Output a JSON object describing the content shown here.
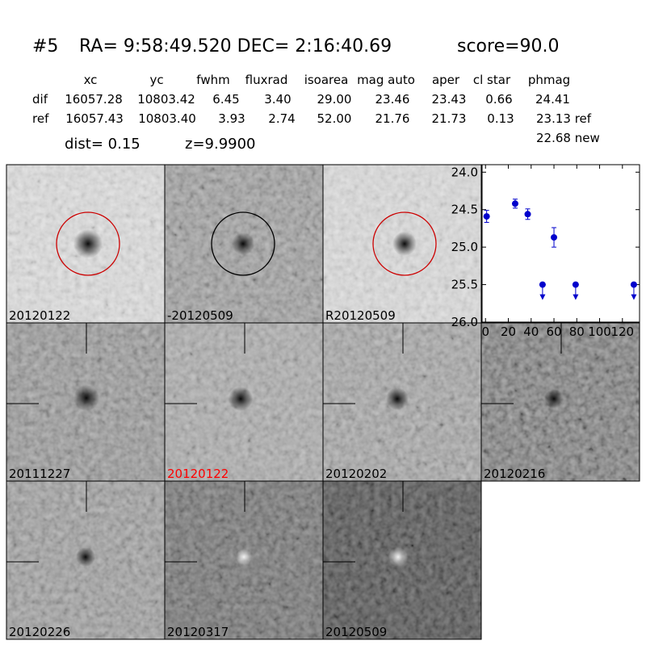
{
  "header": {
    "id": "#5",
    "coords": "RA= 9:58:49.520 DEC= 2:16:40.69",
    "score": "score=90.0"
  },
  "table": {
    "columns": [
      "xc",
      "yc",
      "fwhm",
      "fluxrad",
      "isoarea",
      "mag auto",
      "aper",
      "cl star",
      "phmag"
    ],
    "rows": [
      [
        "dif",
        "16057.28",
        "10803.42",
        "6.45",
        "3.40",
        "29.00",
        "23.46",
        "23.43",
        "0.66",
        "24.41"
      ],
      [
        "ref",
        "16057.43",
        "10803.40",
        "3.93",
        "2.74",
        "52.00",
        "21.76",
        "21.73",
        "0.13",
        "23.13 ref"
      ]
    ],
    "extra": "22.68 new"
  },
  "dist": "dist=  0.15",
  "z": "z=9.9900",
  "stamps": [
    {
      "label": "20120122"
    },
    {
      "label": "-20120509"
    },
    {
      "label": "R20120509"
    },
    {
      "label": "20111227"
    },
    {
      "label": "20120122",
      "label_color": "#ff0000"
    },
    {
      "label": "20120202"
    },
    {
      "label": "20120216"
    },
    {
      "label": "20120226"
    },
    {
      "label": "20120317"
    },
    {
      "label": "20120509"
    }
  ],
  "chart_data": {
    "type": "scatter",
    "xlim": [
      -3,
      135
    ],
    "ylim": [
      26.0,
      23.9
    ],
    "xticks": [
      0,
      20,
      40,
      60,
      80,
      100,
      120
    ],
    "yticks": [
      {
        "value": 24.0,
        "label": "24.0"
      },
      {
        "value": 24.5,
        "label": "24.5"
      },
      {
        "value": 25.0,
        "label": "25.0"
      },
      {
        "value": 25.5,
        "label": "25.5"
      },
      {
        "value": 26.0,
        "label": "26.0"
      }
    ],
    "series": [
      {
        "name": "detections",
        "color": "#0000cc",
        "x": [
          1,
          26,
          37,
          60
        ],
        "values": [
          24.59,
          24.42,
          24.56,
          24.87
        ],
        "errors": [
          0.08,
          0.06,
          0.07,
          0.13
        ]
      },
      {
        "name": "upper limits",
        "color": "#0000cc",
        "x": [
          50,
          79,
          130
        ],
        "values": [
          25.5,
          25.5,
          25.5
        ]
      }
    ]
  }
}
